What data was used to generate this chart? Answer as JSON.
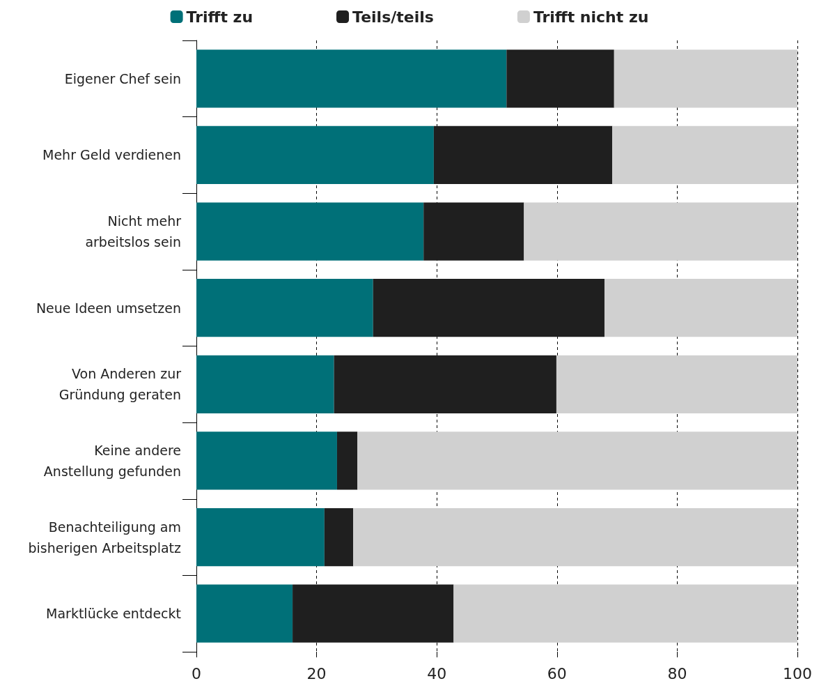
{
  "chart_data": {
    "type": "bar",
    "orientation": "horizontal",
    "stacked": true,
    "categories": [
      "Eigener Chef sein",
      "Mehr Geld verdienen",
      "Nicht mehr\narbeitslos sein",
      "Neue Ideen umsetzen",
      "Von Anderen zur\nGründung geraten",
      "Keine andere\nAnstellung gefunden",
      "Benachteiligung am\nbisherigen Arbeitsplatz",
      "Marktlücke entdeckt"
    ],
    "series": [
      {
        "name": "Trifft zu",
        "color": "#007078",
        "values": [
          51.6,
          39.5,
          37.8,
          29.4,
          22.9,
          23.4,
          21.3,
          16.0
        ]
      },
      {
        "name": "Teils/teils",
        "color": "#1f1f1f",
        "values": [
          17.9,
          29.7,
          16.7,
          38.5,
          37.0,
          3.4,
          4.8,
          26.8
        ]
      },
      {
        "name": "Trifft nicht zu",
        "color": "#d0d0d0",
        "values": [
          30.5,
          30.8,
          45.5,
          32.1,
          40.1,
          73.2,
          73.9,
          57.2
        ]
      }
    ],
    "xlim": [
      0,
      100
    ],
    "xticks": [
      0,
      20,
      40,
      60,
      80,
      100
    ],
    "grid": "x",
    "legend": "top"
  }
}
